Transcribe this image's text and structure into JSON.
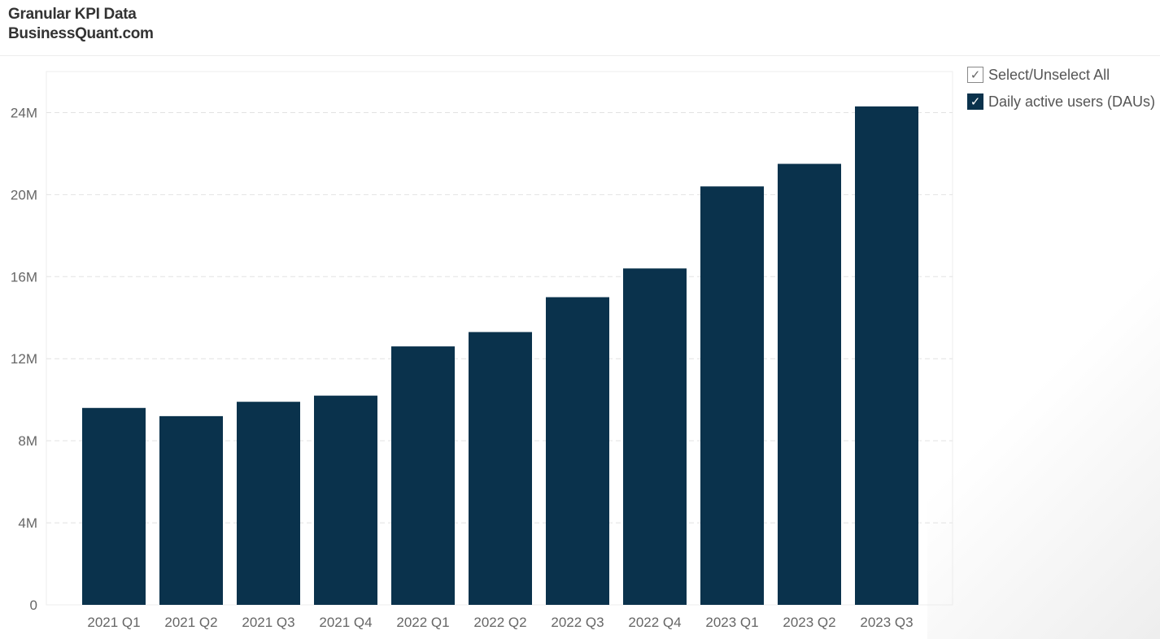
{
  "header": {
    "title": "Granular KPI Data",
    "subtitle": "BusinessQuant.com"
  },
  "legend": {
    "select_all": {
      "label": "Select/Unselect All",
      "checked": false,
      "mark": "✓"
    },
    "series_item": {
      "label": "Daily active users (DAUs)",
      "checked": true,
      "mark": "✓"
    }
  },
  "colors": {
    "bar": "#0a324c",
    "grid": "#e2e2e2",
    "tick_text": "#666666"
  },
  "chart_data": {
    "type": "bar",
    "categories": [
      "2021 Q1",
      "2021 Q2",
      "2021 Q3",
      "2021 Q4",
      "2022 Q1",
      "2022 Q2",
      "2022 Q3",
      "2022 Q4",
      "2023 Q1",
      "2023 Q2",
      "2023 Q3"
    ],
    "series": [
      {
        "name": "Daily active users (DAUs)",
        "values": [
          9.6,
          9.2,
          9.9,
          10.2,
          12.6,
          13.3,
          15.0,
          16.4,
          20.4,
          21.5,
          24.3
        ]
      }
    ],
    "value_unit": "millions",
    "ylim": [
      0,
      26
    ],
    "yticks": [
      0,
      4,
      8,
      12,
      16,
      20,
      24
    ],
    "ytick_labels": [
      "0",
      "4M",
      "8M",
      "12M",
      "16M",
      "20M",
      "24M"
    ],
    "grid": true,
    "legend_position": "right"
  }
}
